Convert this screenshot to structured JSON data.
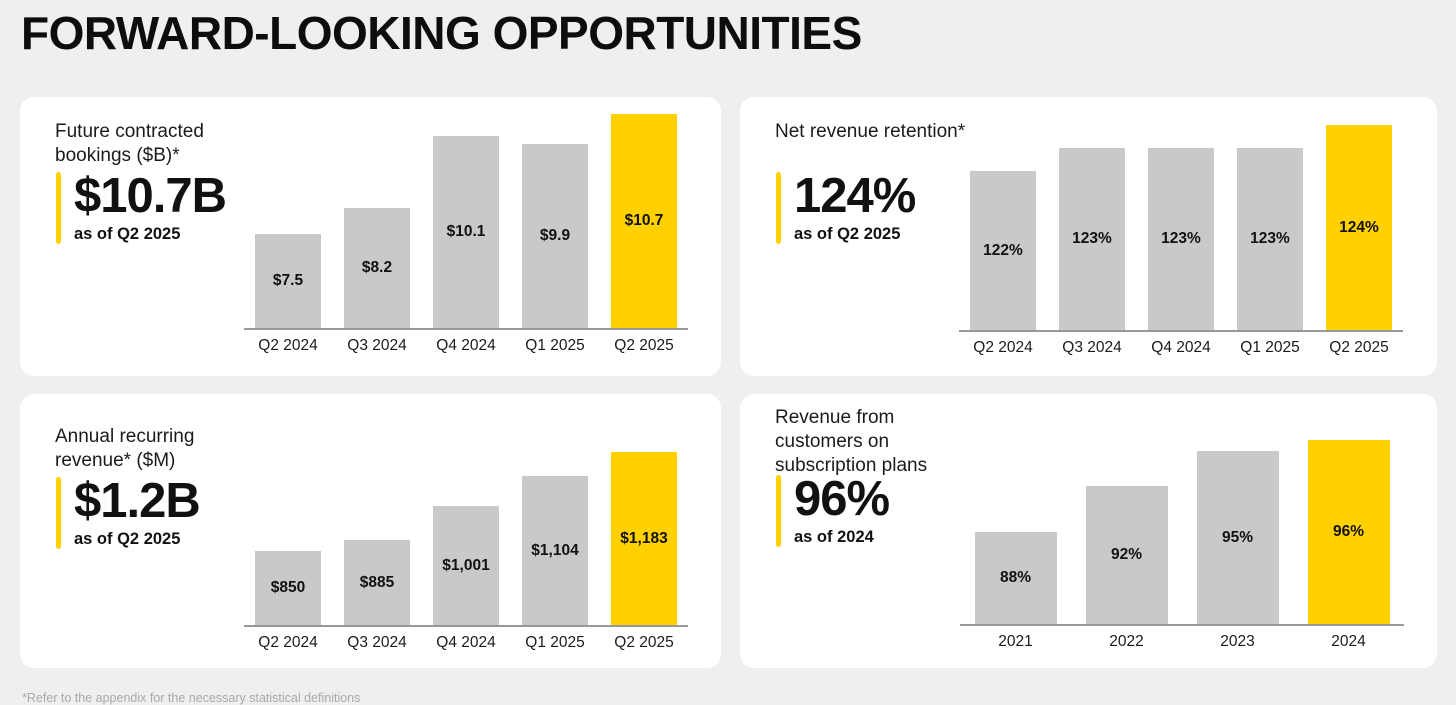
{
  "title": "FORWARD-LOOKING OPPORTUNITIES",
  "footnote": "*Refer to the appendix for the necessary statistical definitions",
  "colors": {
    "background": "#efeff0",
    "panel": "#ffffff",
    "bar_gray": "#c9c9cc",
    "bar_highlight": "#ffd100",
    "accent_yellow": "#ffd100",
    "axis": "#98989b",
    "text_dark": "#111111",
    "footnote_gray": "#a9a9ad"
  },
  "panels": [
    {
      "heading": "Future contracted bookings ($B)*",
      "stat_value": "$10.7B",
      "stat_caption": "as of Q2 2025"
    },
    {
      "heading": "Net revenue retention*",
      "stat_value": "124%",
      "stat_caption": "as of Q2 2025"
    },
    {
      "heading": "Annual recurring revenue* ($M)",
      "stat_value": "$1.2B",
      "stat_caption": "as of Q2 2025"
    },
    {
      "heading": "Revenue from customers on subscription plans",
      "stat_value": "96%",
      "stat_caption": "as of 2024"
    }
  ],
  "chart_data": [
    {
      "id": "bookings",
      "type": "bar",
      "title": "Future contracted bookings ($B)*",
      "categories": [
        "Q2 2024",
        "Q3 2024",
        "Q4 2024",
        "Q1 2025",
        "Q2 2025"
      ],
      "values": [
        7.5,
        8.2,
        10.1,
        9.9,
        10.7
      ],
      "value_labels": [
        "$7.5",
        "$8.2",
        "$10.1",
        "$9.9",
        "$10.7"
      ],
      "highlight_index": 4,
      "xlabel": "",
      "ylabel": "",
      "ylim": [
        5.0,
        10.9
      ],
      "grid": false,
      "legend": "none"
    },
    {
      "id": "nrr",
      "type": "bar",
      "title": "Net revenue retention*",
      "categories": [
        "Q2 2024",
        "Q3 2024",
        "Q4 2024",
        "Q1 2025",
        "Q2 2025"
      ],
      "values": [
        122,
        123,
        123,
        123,
        124
      ],
      "value_labels": [
        "122%",
        "123%",
        "123%",
        "123%",
        "124%"
      ],
      "highlight_index": 4,
      "xlabel": "",
      "ylabel": "",
      "ylim": [
        115,
        124.5
      ],
      "grid": false,
      "legend": "none"
    },
    {
      "id": "arr",
      "type": "bar",
      "title": "Annual recurring revenue* ($M)",
      "categories": [
        "Q2 2024",
        "Q3 2024",
        "Q4 2024",
        "Q1 2025",
        "Q2 2025"
      ],
      "values": [
        850,
        885,
        1001,
        1104,
        1183
      ],
      "value_labels": [
        "$850",
        "$885",
        "$1,001",
        "$1,104",
        "$1,183"
      ],
      "highlight_index": 4,
      "xlabel": "",
      "ylabel": "",
      "ylim": [
        600,
        1190
      ],
      "grid": false,
      "legend": "none"
    },
    {
      "id": "subscription",
      "type": "bar",
      "title": "Revenue from customers on subscription plans",
      "categories": [
        "2021",
        "2022",
        "2023",
        "2024"
      ],
      "values": [
        88,
        92,
        95,
        96
      ],
      "value_labels": [
        "88%",
        "92%",
        "95%",
        "96%"
      ],
      "highlight_index": 3,
      "xlabel": "",
      "ylabel": "",
      "ylim": [
        80,
        96.5
      ],
      "grid": false,
      "legend": "none"
    }
  ]
}
